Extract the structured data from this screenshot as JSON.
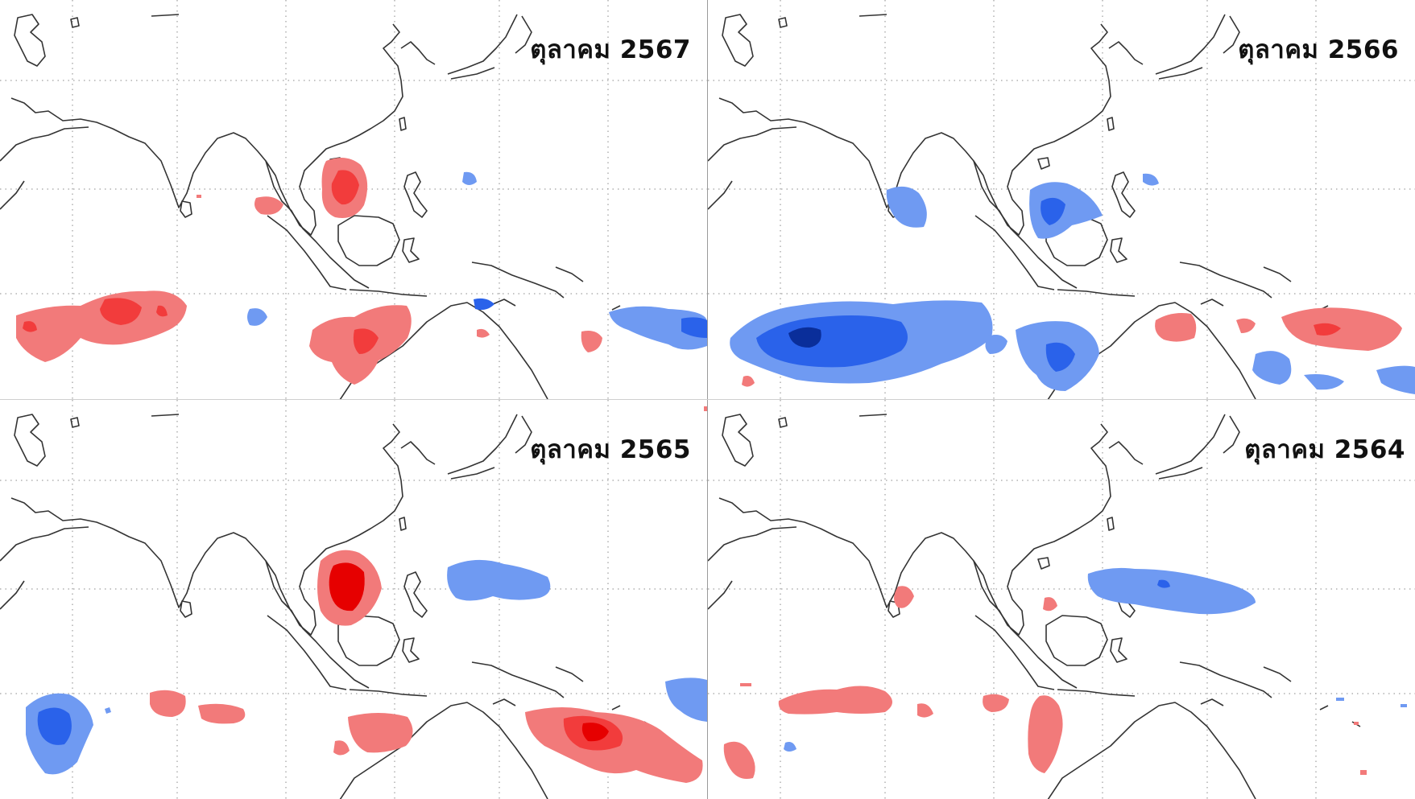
{
  "panels": [
    {
      "id": "top-left",
      "label": "ตุลาคม 2567"
    },
    {
      "id": "top-right",
      "label": "ตุลาคม 2566"
    },
    {
      "id": "bottom-left",
      "label": "ตุลาคม 2565"
    },
    {
      "id": "bottom-right",
      "label": "ตุลาคม 2564"
    }
  ],
  "colors": {
    "red_light": "#f27a7a",
    "red_mid": "#f23c3c",
    "red_dark": "#e60000",
    "blue_light": "#6f9af2",
    "blue_mid": "#2a62ea",
    "blue_dark": "#0a2e9a",
    "coastline": "#333333",
    "background": "#ffffff"
  }
}
